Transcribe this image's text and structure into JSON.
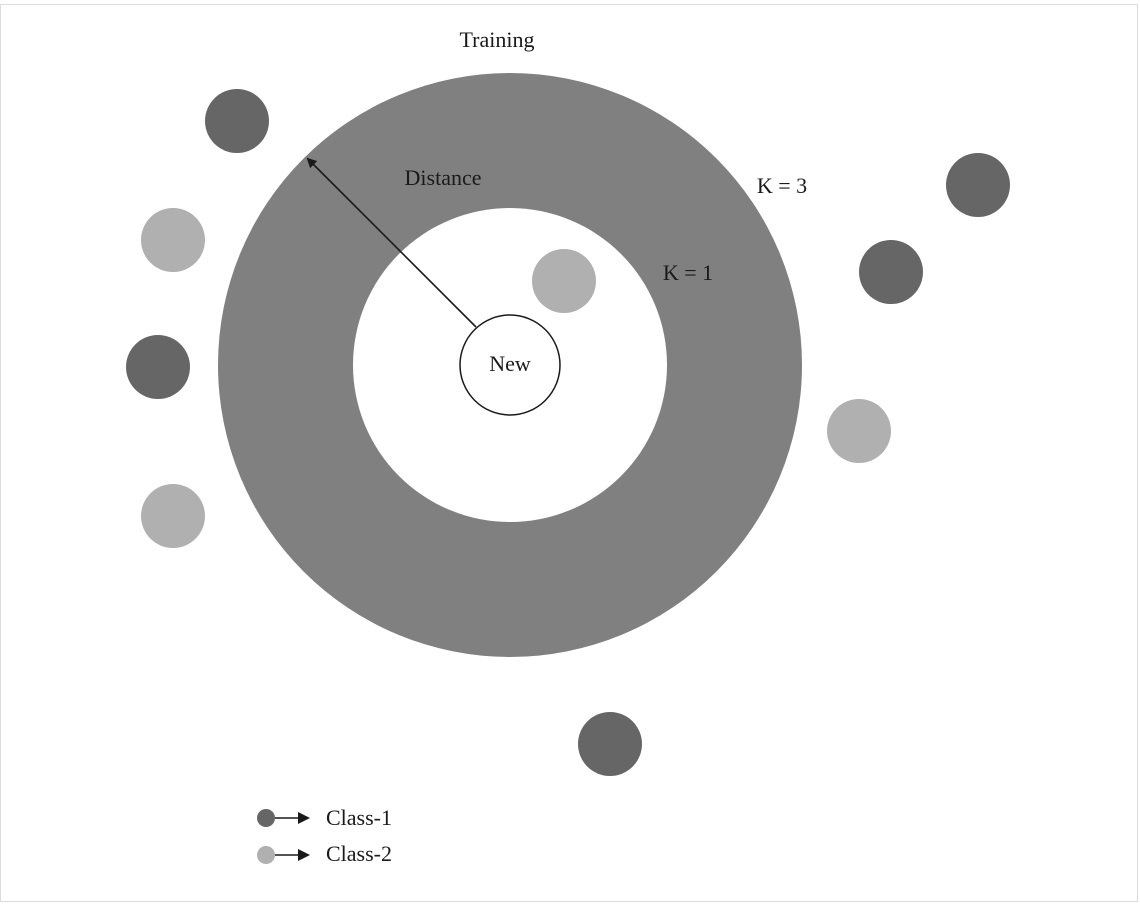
{
  "labels": {
    "title": "Training",
    "distance": "Distance",
    "k3": "K = 3",
    "k1": "K = 1",
    "new_point": "New"
  },
  "legend": {
    "items": [
      {
        "label": "Class-1",
        "class": "class-1"
      },
      {
        "label": "Class-2",
        "class": "class-2"
      }
    ]
  },
  "colors": {
    "class_1": "#666666",
    "class_2": "#b0b0b0",
    "k3_ring": "#808080",
    "background": "#ffffff",
    "outline": "#1a1a1a"
  },
  "training_points": [
    {
      "class": "class-1"
    },
    {
      "class": "class-2"
    },
    {
      "class": "class-1"
    },
    {
      "class": "class-2"
    },
    {
      "class": "class-2"
    },
    {
      "class": "class-1"
    },
    {
      "class": "class-1"
    },
    {
      "class": "class-2"
    },
    {
      "class": "class-1"
    }
  ]
}
